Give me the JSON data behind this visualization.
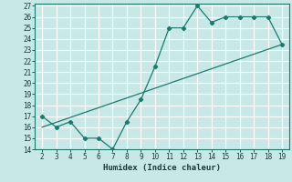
{
  "x": [
    2,
    3,
    4,
    5,
    6,
    7,
    8,
    9,
    10,
    11,
    12,
    13,
    14,
    15,
    16,
    17,
    18,
    19
  ],
  "y": [
    17,
    16,
    16.5,
    15,
    15,
    14,
    16.5,
    18.5,
    21.5,
    25,
    25,
    27,
    25.5,
    26,
    26,
    26,
    26,
    23.5
  ],
  "trend_x": [
    2,
    19
  ],
  "trend_y": [
    16.0,
    23.5
  ],
  "color": "#1a7a6e",
  "bg_color": "#c8e8e8",
  "grid_color": "#ffffff",
  "xlabel": "Humidex (Indice chaleur)",
  "xlim": [
    1.5,
    19.5
  ],
  "ylim": [
    14,
    27.2
  ],
  "yticks": [
    14,
    15,
    16,
    17,
    18,
    19,
    20,
    21,
    22,
    23,
    24,
    25,
    26,
    27
  ],
  "xticks": [
    2,
    3,
    4,
    5,
    6,
    7,
    8,
    9,
    10,
    11,
    12,
    13,
    14,
    15,
    16,
    17,
    18,
    19
  ],
  "tick_fontsize": 5.5,
  "xlabel_fontsize": 6.5
}
